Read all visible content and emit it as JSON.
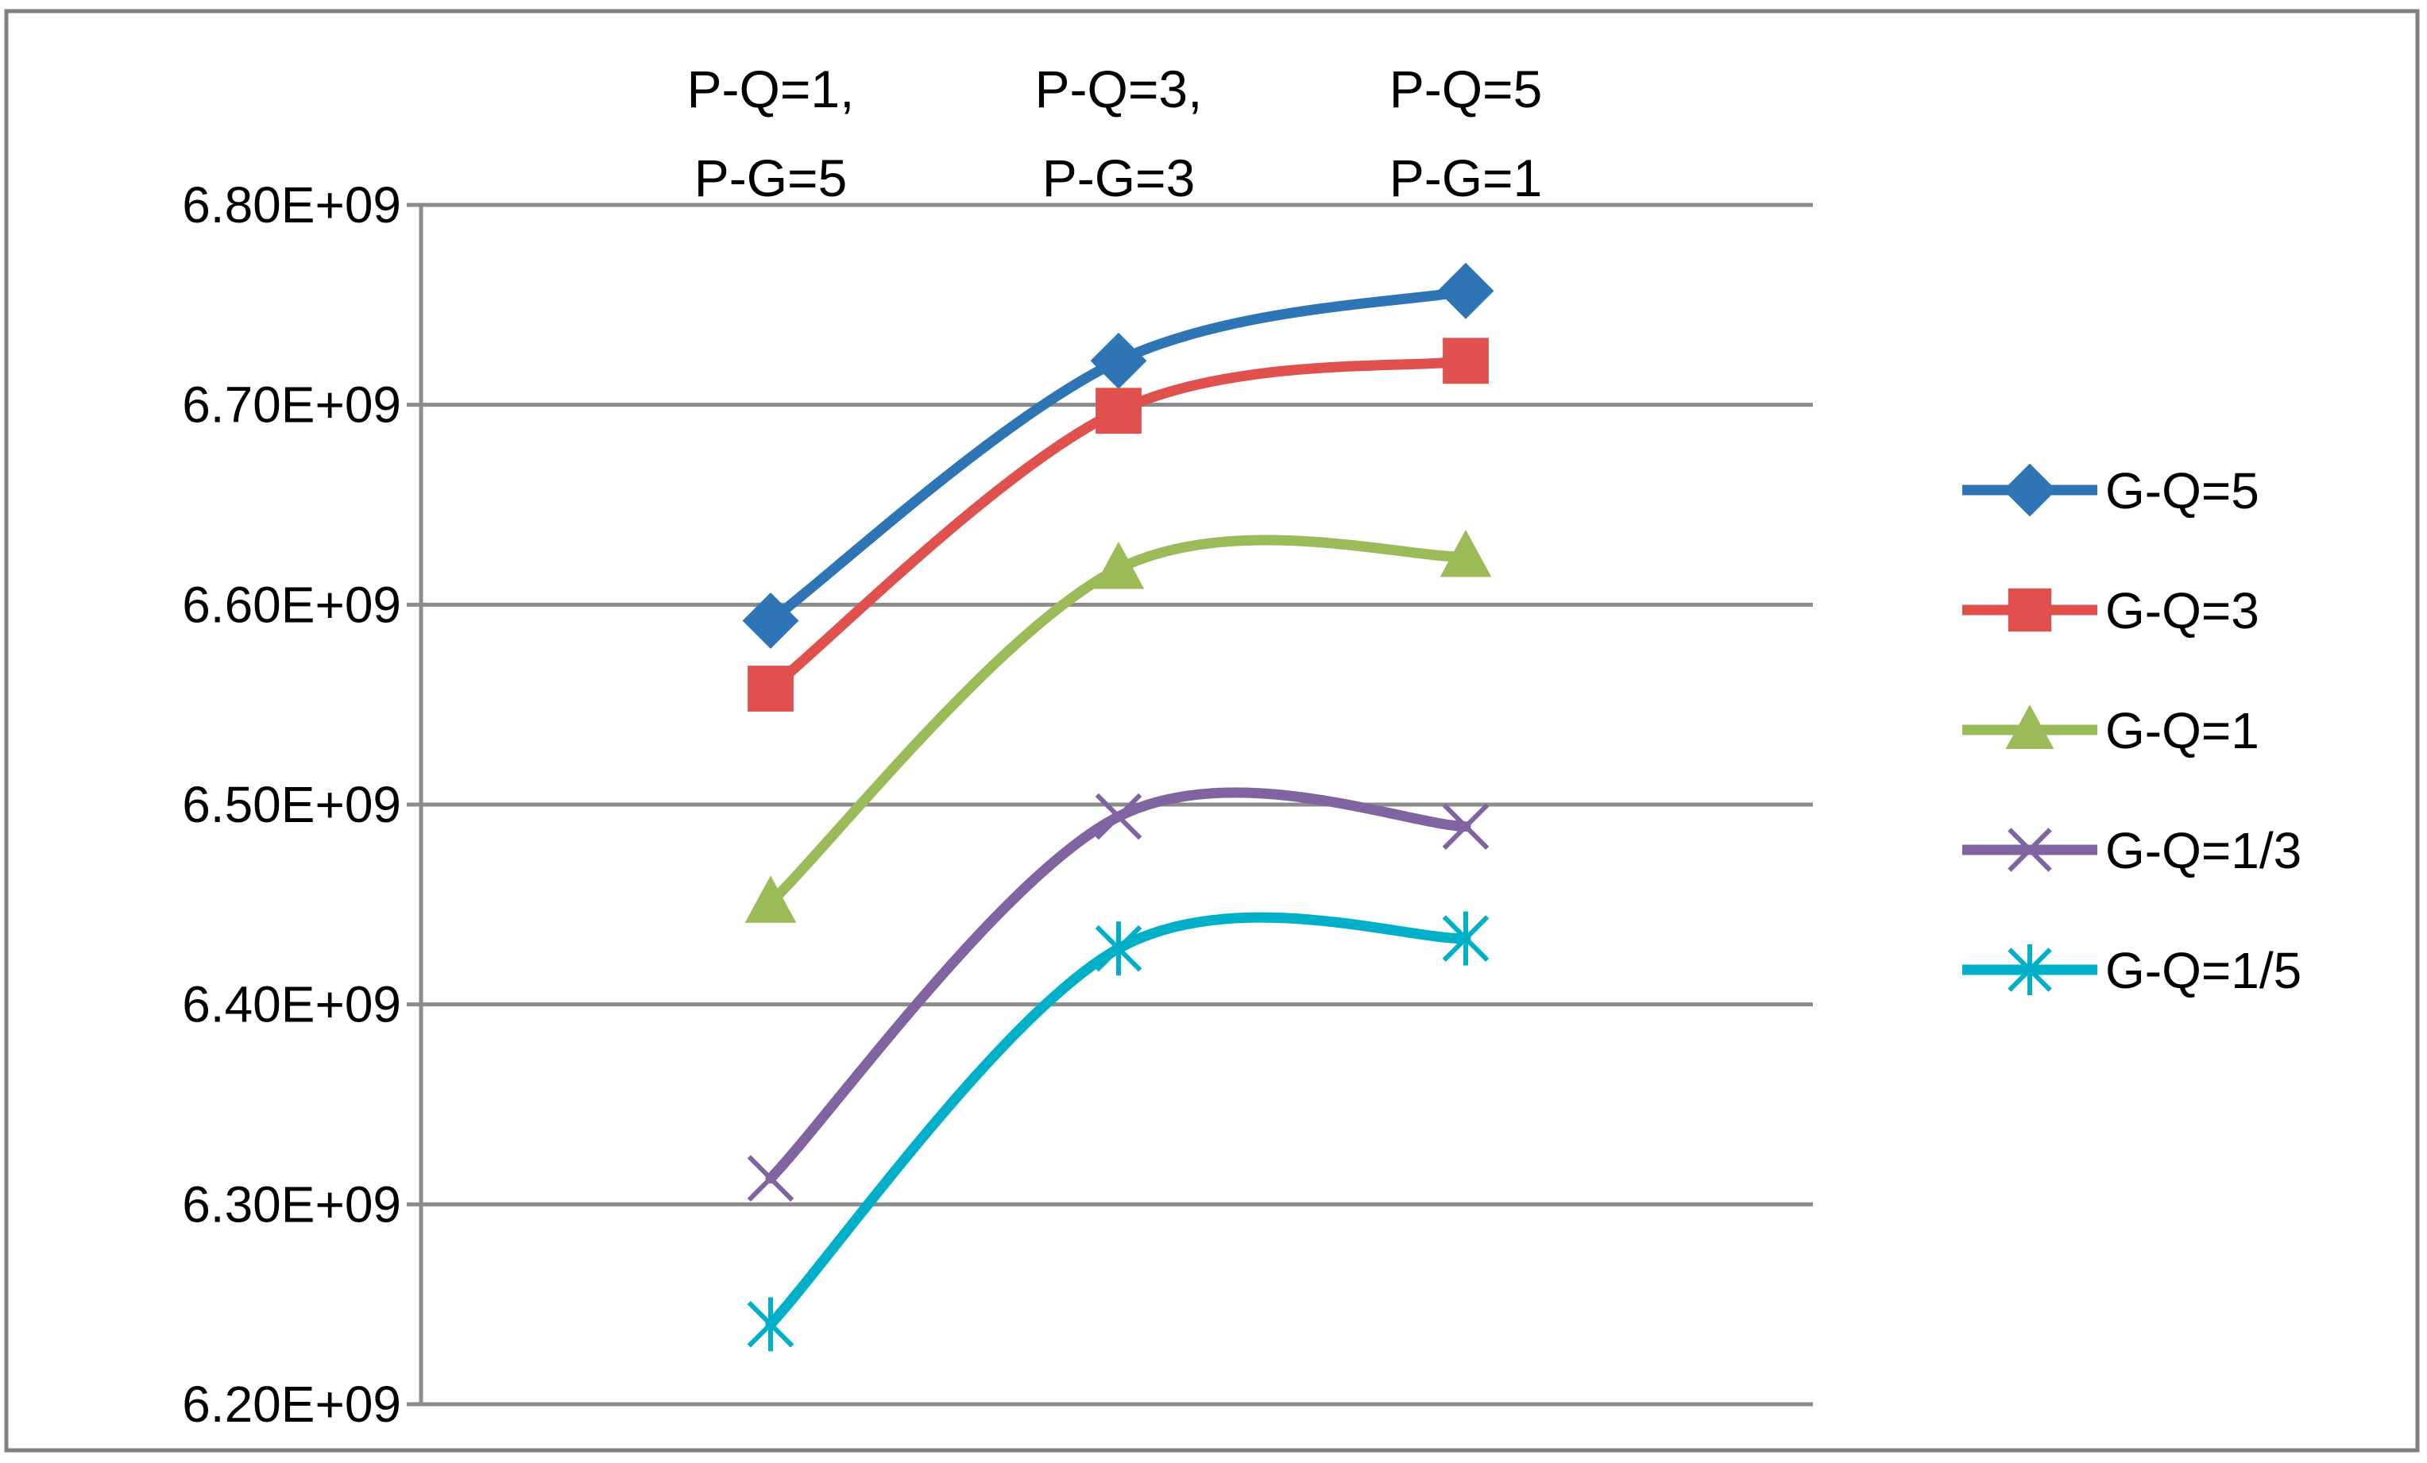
{
  "chart_data": {
    "type": "line",
    "title": "",
    "xlabel": "",
    "ylabel": "",
    "categories": [
      [
        "P-Q=1,",
        "P-G=5"
      ],
      [
        "P-Q=3,",
        "P-G=3"
      ],
      [
        "P-Q=5",
        "P-G=1"
      ]
    ],
    "y_ticks": [
      "6.20E+09",
      "6.30E+09",
      "6.40E+09",
      "6.50E+09",
      "6.60E+09",
      "6.70E+09",
      "6.80E+09"
    ],
    "ylim": [
      6200000000,
      6800000000
    ],
    "grid": true,
    "smooth": true,
    "legend_position": "right",
    "series": [
      {
        "name": "G-Q=5",
        "color": "#2E75B6",
        "marker": "diamond",
        "values": [
          6592000000,
          6722000000,
          6757000000
        ]
      },
      {
        "name": "G-Q=3",
        "color": "#E0504D",
        "marker": "square",
        "values": [
          6558000000,
          6697000000,
          6722000000
        ]
      },
      {
        "name": "G-Q=1",
        "color": "#9BBB59",
        "marker": "triangle",
        "values": [
          6451000000,
          6618000000,
          6624000000
        ]
      },
      {
        "name": "G-Q=1/3",
        "color": "#8064A2",
        "marker": "x",
        "values": [
          6313000000,
          6494000000,
          6489000000
        ]
      },
      {
        "name": "G-Q=1/5",
        "color": "#00B0C8",
        "marker": "star",
        "values": [
          6240000000,
          6428000000,
          6433000000
        ]
      }
    ]
  }
}
